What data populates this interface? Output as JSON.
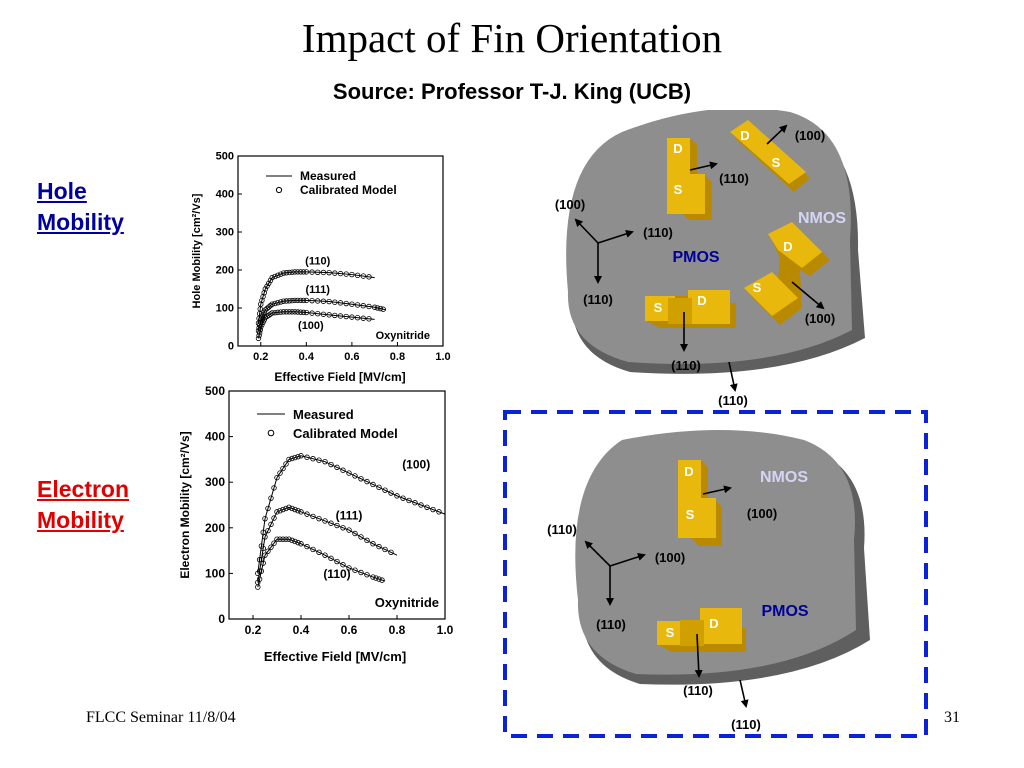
{
  "title": "Impact of Fin Orientation",
  "subtitle": "Source: Professor T-J. King (UCB)",
  "left_labels": {
    "hole": [
      "Hole",
      "Mobility"
    ],
    "electron": [
      "Electron",
      "Mobility"
    ]
  },
  "footer": {
    "left": "FLCC Seminar 11/8/04",
    "page": "31"
  },
  "chart_data": [
    {
      "type": "line",
      "xlabel": "Effective Field [MV/cm]",
      "ylabel": "Hole Mobility [cm²/Vs]",
      "xlim": [
        0.1,
        1.0
      ],
      "ylim": [
        0,
        500
      ],
      "xticks": [
        "0.2",
        "0.4",
        "0.6",
        "0.8",
        "1.0"
      ],
      "yticks": [
        "0",
        "100",
        "200",
        "300",
        "400",
        "500"
      ],
      "legend": [
        "Measured",
        "Calibrated Model"
      ],
      "annotation": "Oxynitride",
      "series": [
        {
          "name": "(110)",
          "x": [
            0.19,
            0.2,
            0.22,
            0.25,
            0.3,
            0.35,
            0.4,
            0.5,
            0.6,
            0.7
          ],
          "values": [
            60,
            110,
            150,
            180,
            192,
            195,
            195,
            193,
            188,
            180
          ]
        },
        {
          "name": "(111)",
          "x": [
            0.19,
            0.2,
            0.22,
            0.25,
            0.3,
            0.35,
            0.4,
            0.5,
            0.6,
            0.7,
            0.75
          ],
          "values": [
            40,
            70,
            95,
            110,
            118,
            120,
            120,
            117,
            110,
            102,
            95
          ]
        },
        {
          "name": "(100)",
          "x": [
            0.19,
            0.2,
            0.22,
            0.25,
            0.3,
            0.35,
            0.4,
            0.5,
            0.6,
            0.7
          ],
          "values": [
            20,
            50,
            75,
            87,
            90,
            90,
            88,
            82,
            76,
            70
          ]
        }
      ]
    },
    {
      "type": "line",
      "xlabel": "Effective Field [MV/cm]",
      "ylabel": "Electron Mobility [cm²/Vs]",
      "xlim": [
        0.1,
        1.0
      ],
      "ylim": [
        0,
        500
      ],
      "xticks": [
        "0.2",
        "0.4",
        "0.6",
        "0.8",
        "1.0"
      ],
      "yticks": [
        "0",
        "100",
        "200",
        "300",
        "400",
        "500"
      ],
      "legend": [
        "Measured",
        "Calibrated Model"
      ],
      "annotation": "Oxynitride",
      "series": [
        {
          "name": "(100)",
          "x": [
            0.22,
            0.25,
            0.3,
            0.35,
            0.4,
            0.5,
            0.6,
            0.7,
            0.8,
            0.9,
            1.0
          ],
          "values": [
            100,
            220,
            310,
            350,
            358,
            345,
            320,
            295,
            270,
            250,
            230
          ]
        },
        {
          "name": "(111)",
          "x": [
            0.22,
            0.25,
            0.3,
            0.35,
            0.4,
            0.5,
            0.6,
            0.7,
            0.8
          ],
          "values": [
            80,
            180,
            235,
            245,
            235,
            215,
            195,
            165,
            140
          ]
        },
        {
          "name": "(110)",
          "x": [
            0.22,
            0.25,
            0.3,
            0.35,
            0.4,
            0.5,
            0.6,
            0.7,
            0.75
          ],
          "values": [
            70,
            140,
            175,
            175,
            165,
            140,
            112,
            92,
            83
          ]
        }
      ]
    }
  ],
  "wafer_top": {
    "labels": [
      "(100)",
      "(110)",
      "(100)",
      "(110)",
      "(110)",
      "(100)",
      "(110)",
      "(110)"
    ],
    "nmos": "NMOS",
    "pmos": "PMOS",
    "d": "D",
    "s": "S"
  },
  "wafer_bottom": {
    "labels": [
      "(110)",
      "(100)",
      "(110)",
      "(100)",
      "(110)",
      "(110)"
    ],
    "nmos": "NMOS",
    "pmos": "PMOS",
    "d": "D",
    "s": "S"
  },
  "colors": {
    "wafer_face": "#8c8c8c",
    "wafer_edge": "#626262",
    "device": "#e8b80c",
    "device_dark": "#b88a00",
    "nmos_text": "#d4d4f4",
    "pmos_text": "#00009c",
    "dash_box": "#0b22d6"
  }
}
